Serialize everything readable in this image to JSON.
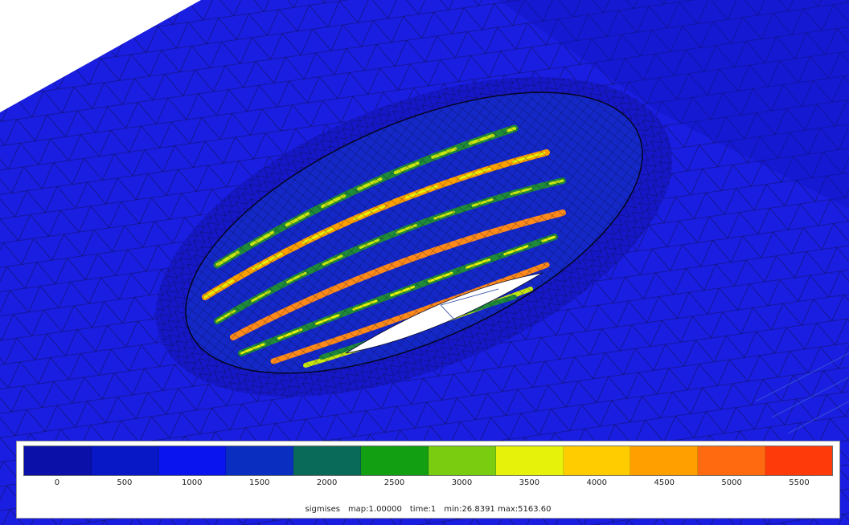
{
  "viewer": {
    "result_field": "sigmises",
    "map_scale_label": "map:1.00000",
    "time_label": "time:1",
    "range_label": "min:26.8391 max:5163.60"
  },
  "legend": {
    "ticks": [
      "0",
      "500",
      "1000",
      "1500",
      "2000",
      "2500",
      "3000",
      "3500",
      "4000",
      "4500",
      "5000",
      "5500"
    ],
    "colors": [
      "#0a10a8",
      "#0818c6",
      "#0a14ee",
      "#0a2fc0",
      "#0a6a5a",
      "#12a012",
      "#7acc10",
      "#e6f20a",
      "#ffcc00",
      "#ffa000",
      "#ff6a10",
      "#ff3a0a"
    ]
  },
  "model_colors": {
    "background_plate": "#1a1ee0",
    "hole_wall": "#1428c8",
    "thread_low": "#1f8a3a",
    "thread_mid": "#c8e610",
    "thread_high": "#ff8a1a",
    "mesh_lines": "#0a0a2e"
  }
}
